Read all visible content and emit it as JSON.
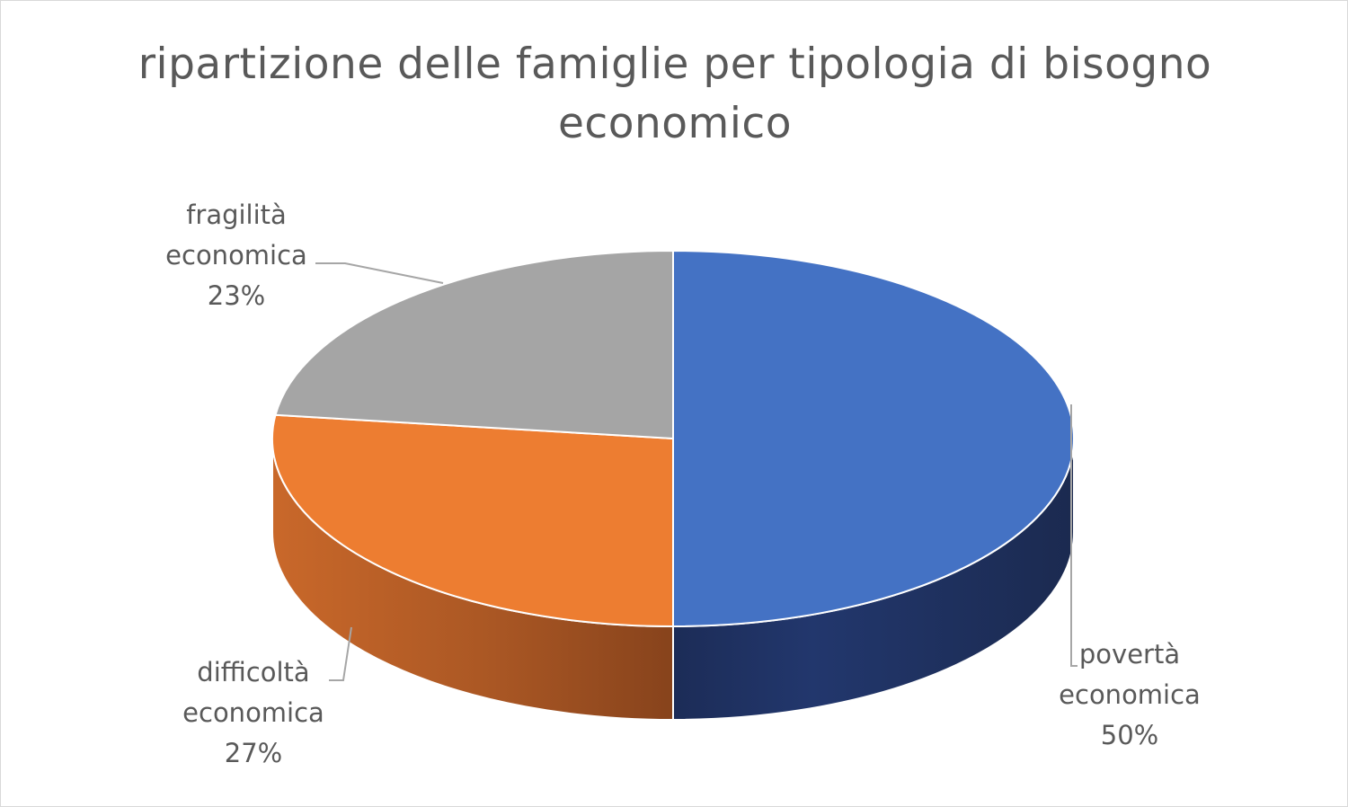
{
  "chart_data": {
    "type": "pie",
    "title": "ripartizione delle famiglie per tipologia di bisogno economico",
    "categories": [
      "povertà economica",
      "difficoltà economica",
      "fragilità economica"
    ],
    "values": [
      50,
      27,
      23
    ],
    "value_labels": [
      "50%",
      "27%",
      "23%"
    ],
    "label_lines": [
      [
        "povertà",
        "economica"
      ],
      [
        "difficoltà",
        "economica"
      ],
      [
        "fragilità",
        "economica"
      ]
    ],
    "colors": [
      "#4472c4",
      "#ed7d31",
      "#a5a5a5"
    ],
    "style": "3d-pie",
    "legend": "none"
  }
}
